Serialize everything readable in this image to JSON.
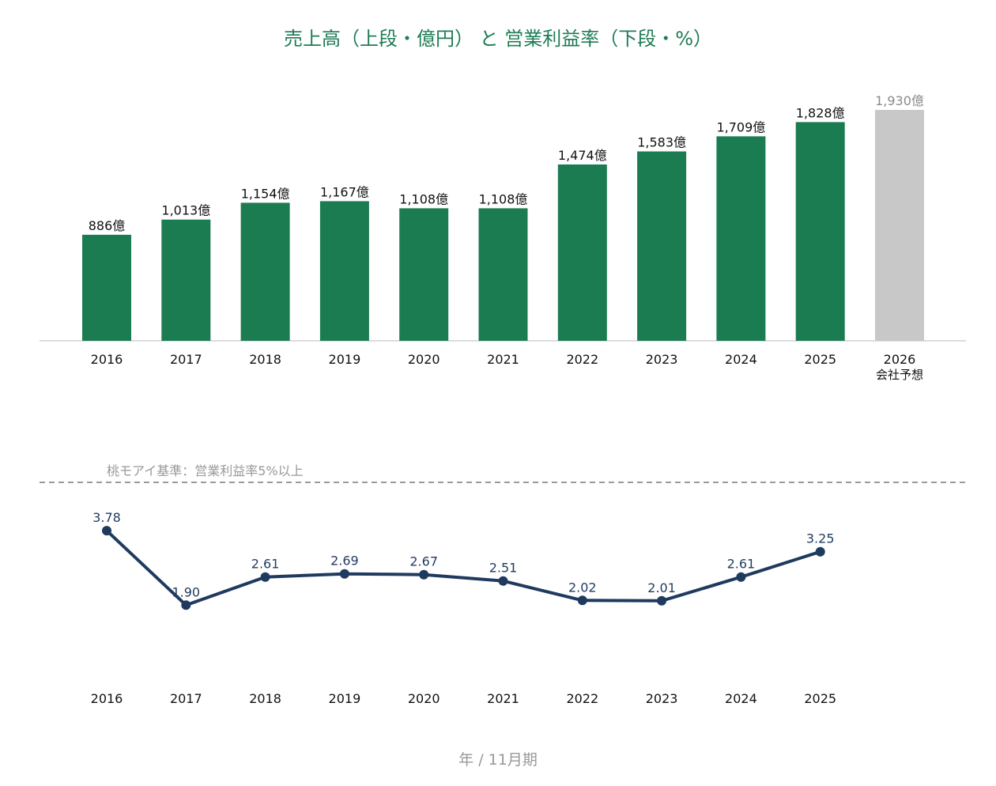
{
  "title": "売上高（上段・億円） と 営業利益率（下段・%）",
  "footer_label": "年 / 11月期",
  "colors": {
    "title": "#1c7c54",
    "bar_actual": "#1b7c52",
    "bar_forecast": "#c8c8c8",
    "forecast_label": "#8a8a8a",
    "line": "#1f3a5f",
    "baseline_dash": "#9a9a9a",
    "axis": "#bbbbbb"
  },
  "chart_data": [
    {
      "type": "bar",
      "title": "",
      "unit_suffix": "億",
      "categories": [
        "2016",
        "2017",
        "2018",
        "2019",
        "2020",
        "2021",
        "2022",
        "2023",
        "2024",
        "2025",
        "2026"
      ],
      "category_sublabels": [
        "",
        "",
        "",
        "",
        "",
        "",
        "",
        "",
        "",
        "",
        "会社予想"
      ],
      "values": [
        886,
        1013,
        1154,
        1167,
        1108,
        1108,
        1474,
        1583,
        1709,
        1828,
        1930
      ],
      "value_labels": [
        "886億",
        "1,013億",
        "1,154億",
        "1,167億",
        "1,108億",
        "1,108億",
        "1,474億",
        "1,583億",
        "1,709億",
        "1,828億",
        "1,930億"
      ],
      "forecast_flags": [
        false,
        false,
        false,
        false,
        false,
        false,
        false,
        false,
        false,
        false,
        true
      ],
      "ylim": [
        0,
        2050
      ]
    },
    {
      "type": "line",
      "title": "",
      "x": [
        "2016",
        "2017",
        "2018",
        "2019",
        "2020",
        "2021",
        "2022",
        "2023",
        "2024",
        "2025"
      ],
      "values": [
        3.78,
        1.9,
        2.61,
        2.69,
        2.67,
        2.51,
        2.02,
        2.01,
        2.61,
        3.25
      ],
      "value_labels": [
        "3.78",
        "1.90",
        "2.61",
        "2.69",
        "2.67",
        "2.51",
        "2.02",
        "2.01",
        "2.61",
        "3.25"
      ],
      "ylim": [
        0,
        5
      ],
      "reference_line": {
        "value": 5,
        "label": "桃モアイ基準：営業利益率5%以上",
        "style": "dashed"
      }
    }
  ]
}
